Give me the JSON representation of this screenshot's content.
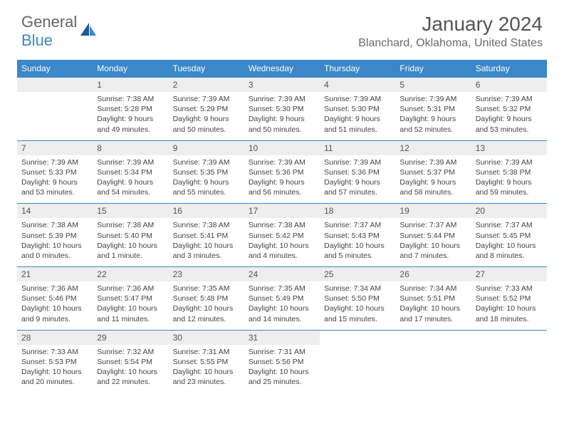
{
  "logo": {
    "line1": "General",
    "line2": "Blue"
  },
  "title": {
    "month": "January 2024",
    "location": "Blanchard, Oklahoma, United States"
  },
  "colors": {
    "header_bg": "#3b87c8",
    "header_text": "#ffffff",
    "daynum_bg": "#eeeeee",
    "text": "#444444",
    "rule": "#3b87c8"
  },
  "weekdays": [
    "Sunday",
    "Monday",
    "Tuesday",
    "Wednesday",
    "Thursday",
    "Friday",
    "Saturday"
  ],
  "start_offset": 1,
  "days": [
    {
      "n": 1,
      "sunrise": "7:38 AM",
      "sunset": "5:28 PM",
      "daylight": "9 hours and 49 minutes."
    },
    {
      "n": 2,
      "sunrise": "7:39 AM",
      "sunset": "5:29 PM",
      "daylight": "9 hours and 50 minutes."
    },
    {
      "n": 3,
      "sunrise": "7:39 AM",
      "sunset": "5:30 PM",
      "daylight": "9 hours and 50 minutes."
    },
    {
      "n": 4,
      "sunrise": "7:39 AM",
      "sunset": "5:30 PM",
      "daylight": "9 hours and 51 minutes."
    },
    {
      "n": 5,
      "sunrise": "7:39 AM",
      "sunset": "5:31 PM",
      "daylight": "9 hours and 52 minutes."
    },
    {
      "n": 6,
      "sunrise": "7:39 AM",
      "sunset": "5:32 PM",
      "daylight": "9 hours and 53 minutes."
    },
    {
      "n": 7,
      "sunrise": "7:39 AM",
      "sunset": "5:33 PM",
      "daylight": "9 hours and 53 minutes."
    },
    {
      "n": 8,
      "sunrise": "7:39 AM",
      "sunset": "5:34 PM",
      "daylight": "9 hours and 54 minutes."
    },
    {
      "n": 9,
      "sunrise": "7:39 AM",
      "sunset": "5:35 PM",
      "daylight": "9 hours and 55 minutes."
    },
    {
      "n": 10,
      "sunrise": "7:39 AM",
      "sunset": "5:36 PM",
      "daylight": "9 hours and 56 minutes."
    },
    {
      "n": 11,
      "sunrise": "7:39 AM",
      "sunset": "5:36 PM",
      "daylight": "9 hours and 57 minutes."
    },
    {
      "n": 12,
      "sunrise": "7:39 AM",
      "sunset": "5:37 PM",
      "daylight": "9 hours and 58 minutes."
    },
    {
      "n": 13,
      "sunrise": "7:39 AM",
      "sunset": "5:38 PM",
      "daylight": "9 hours and 59 minutes."
    },
    {
      "n": 14,
      "sunrise": "7:38 AM",
      "sunset": "5:39 PM",
      "daylight": "10 hours and 0 minutes."
    },
    {
      "n": 15,
      "sunrise": "7:38 AM",
      "sunset": "5:40 PM",
      "daylight": "10 hours and 1 minute."
    },
    {
      "n": 16,
      "sunrise": "7:38 AM",
      "sunset": "5:41 PM",
      "daylight": "10 hours and 3 minutes."
    },
    {
      "n": 17,
      "sunrise": "7:38 AM",
      "sunset": "5:42 PM",
      "daylight": "10 hours and 4 minutes."
    },
    {
      "n": 18,
      "sunrise": "7:37 AM",
      "sunset": "5:43 PM",
      "daylight": "10 hours and 5 minutes."
    },
    {
      "n": 19,
      "sunrise": "7:37 AM",
      "sunset": "5:44 PM",
      "daylight": "10 hours and 7 minutes."
    },
    {
      "n": 20,
      "sunrise": "7:37 AM",
      "sunset": "5:45 PM",
      "daylight": "10 hours and 8 minutes."
    },
    {
      "n": 21,
      "sunrise": "7:36 AM",
      "sunset": "5:46 PM",
      "daylight": "10 hours and 9 minutes."
    },
    {
      "n": 22,
      "sunrise": "7:36 AM",
      "sunset": "5:47 PM",
      "daylight": "10 hours and 11 minutes."
    },
    {
      "n": 23,
      "sunrise": "7:35 AM",
      "sunset": "5:48 PM",
      "daylight": "10 hours and 12 minutes."
    },
    {
      "n": 24,
      "sunrise": "7:35 AM",
      "sunset": "5:49 PM",
      "daylight": "10 hours and 14 minutes."
    },
    {
      "n": 25,
      "sunrise": "7:34 AM",
      "sunset": "5:50 PM",
      "daylight": "10 hours and 15 minutes."
    },
    {
      "n": 26,
      "sunrise": "7:34 AM",
      "sunset": "5:51 PM",
      "daylight": "10 hours and 17 minutes."
    },
    {
      "n": 27,
      "sunrise": "7:33 AM",
      "sunset": "5:52 PM",
      "daylight": "10 hours and 18 minutes."
    },
    {
      "n": 28,
      "sunrise": "7:33 AM",
      "sunset": "5:53 PM",
      "daylight": "10 hours and 20 minutes."
    },
    {
      "n": 29,
      "sunrise": "7:32 AM",
      "sunset": "5:54 PM",
      "daylight": "10 hours and 22 minutes."
    },
    {
      "n": 30,
      "sunrise": "7:31 AM",
      "sunset": "5:55 PM",
      "daylight": "10 hours and 23 minutes."
    },
    {
      "n": 31,
      "sunrise": "7:31 AM",
      "sunset": "5:56 PM",
      "daylight": "10 hours and 25 minutes."
    }
  ]
}
